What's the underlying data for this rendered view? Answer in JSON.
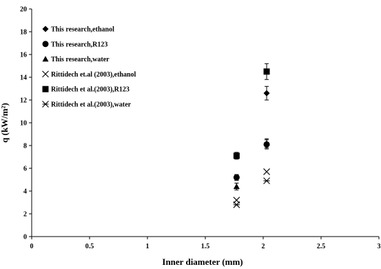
{
  "chart_data": {
    "type": "scatter",
    "title": "",
    "xlabel": "Inner diameter (mm)",
    "ylabel": "q (kW/m²)",
    "xlim": [
      0,
      3
    ],
    "ylim": [
      0,
      20
    ],
    "x_ticks": [
      "0",
      "0.5",
      "1",
      "1.5",
      "2",
      "2.5",
      "3"
    ],
    "y_ticks": [
      "0",
      "2",
      "4",
      "6",
      "8",
      "10",
      "12",
      "14",
      "16",
      "18",
      "20"
    ],
    "grid": false,
    "legend_position": "top-left",
    "series": [
      {
        "name": "This research,ethanol",
        "marker": "diamond",
        "x": [
          1.77,
          2.03
        ],
        "y": [
          5.2,
          12.6
        ],
        "err": [
          0.25,
          0.6
        ]
      },
      {
        "name": "This research,R123",
        "marker": "circle",
        "x": [
          1.77,
          2.03
        ],
        "y": [
          5.2,
          8.1
        ],
        "err": [
          0.25,
          0.4
        ]
      },
      {
        "name": "This research,water",
        "marker": "triangle",
        "x": [
          1.77,
          2.03
        ],
        "y": [
          4.4,
          8.2
        ],
        "err": [
          0.3,
          0.4
        ]
      },
      {
        "name": "Rittidech et.al (2003),ethanol",
        "marker": "x",
        "x": [
          1.77,
          2.03
        ],
        "y": [
          3.2,
          5.7
        ],
        "err": null
      },
      {
        "name": "Rittidech et al.(2003),R123",
        "marker": "square",
        "x": [
          1.77,
          2.03
        ],
        "y": [
          7.1,
          14.5
        ],
        "err": [
          0.3,
          0.7
        ]
      },
      {
        "name": "Rittidech et al.(2003),water",
        "marker": "star",
        "x": [
          1.77,
          2.03
        ],
        "y": [
          2.8,
          4.9
        ],
        "err": null
      }
    ]
  }
}
